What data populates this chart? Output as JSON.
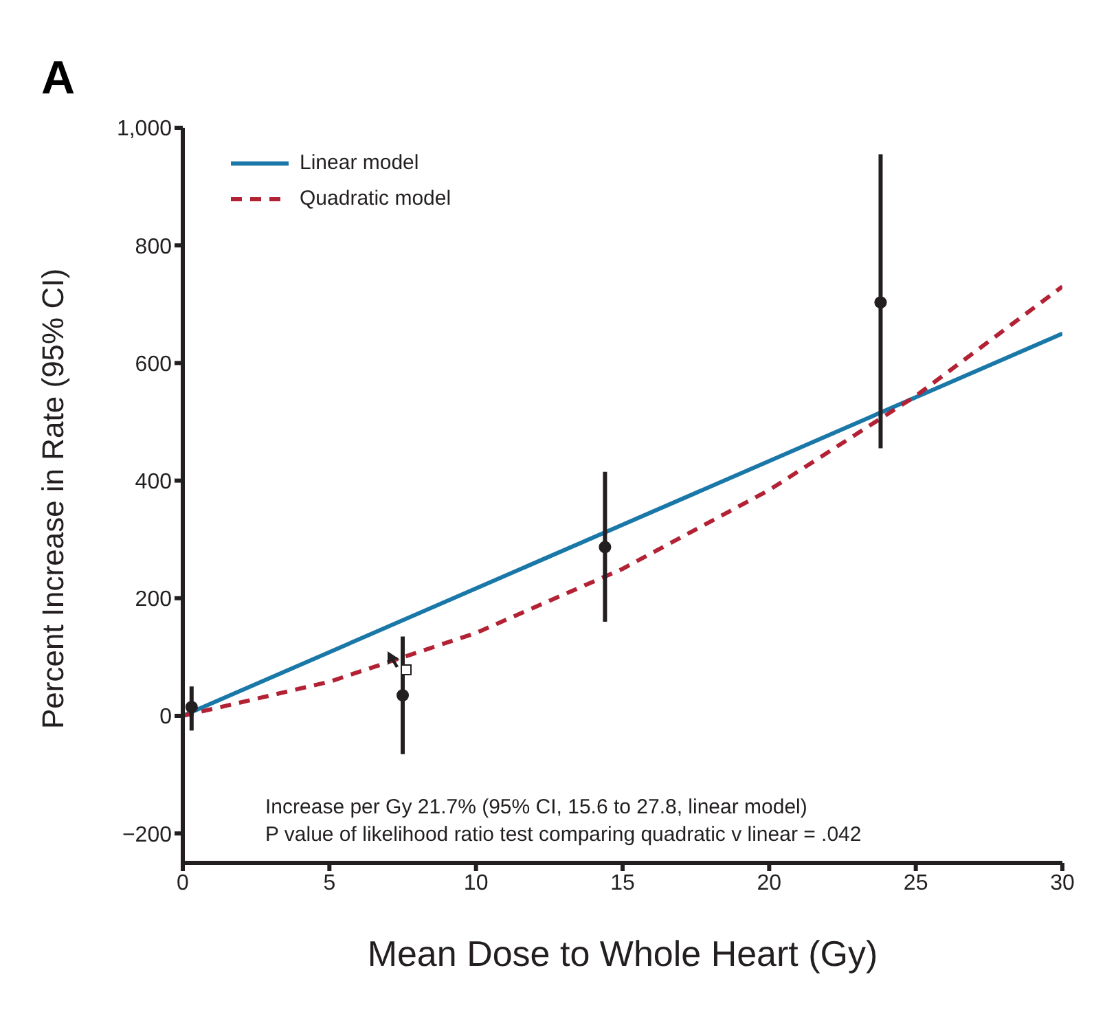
{
  "chart_data": {
    "type": "line",
    "title": "A",
    "xlabel": "Mean Dose to Whole Heart (Gy)",
    "ylabel": "Percent Increase in Rate (95% CI)",
    "xlim": [
      0,
      30
    ],
    "xticks": [
      0,
      5,
      10,
      15,
      20,
      25,
      30
    ],
    "ylim": [
      -250,
      1000
    ],
    "yticks": [
      {
        "value": -200,
        "label": "−200"
      },
      0,
      200,
      400,
      600,
      800,
      {
        "value": 1000,
        "label": "1,000"
      }
    ],
    "grid": false,
    "legend": "top left",
    "series": [
      {
        "name": "Linear model",
        "color": "#1a78a8",
        "line_style": "solid",
        "marker": "none",
        "x": [
          0,
          30
        ],
        "values": [
          0,
          650
        ]
      },
      {
        "name": "Quadratic model",
        "color": "#b22234",
        "line_style": "dashed",
        "marker": "none",
        "x": [
          0,
          5,
          10,
          15,
          20,
          25,
          30
        ],
        "values": [
          0,
          58,
          141,
          250,
          384,
          544,
          730
        ]
      },
      {
        "type": "scatter",
        "color": "#231f20",
        "marker": "circle",
        "x": [
          0.3,
          7.5,
          14.4,
          23.8
        ],
        "values": [
          15,
          35,
          287,
          703
        ],
        "errors": [
          [
            -25,
            50
          ],
          [
            -65,
            135
          ],
          [
            160,
            415
          ],
          [
            455,
            955
          ]
        ]
      }
    ],
    "annotations": [
      "Increase per Gy 21.7% (95% CI, 15.6 to 27.8, linear model)",
      "P value of likelihood ratio test comparing quadratic v linear = .042"
    ]
  }
}
